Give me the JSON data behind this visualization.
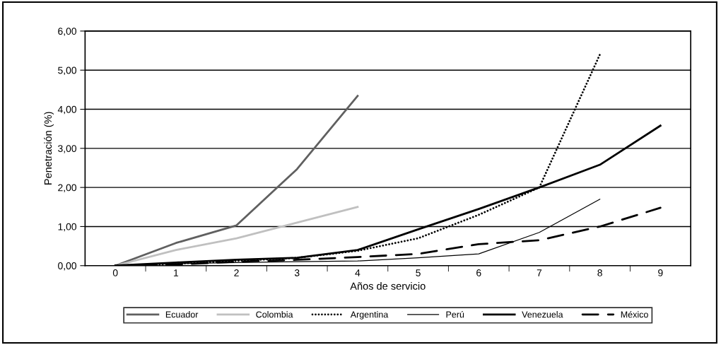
{
  "chart_data": {
    "type": "line",
    "xlabel": "Años de servicio",
    "ylabel": "Penetración (%)",
    "categories": [
      "0",
      "1",
      "2",
      "3",
      "4",
      "5",
      "6",
      "7",
      "8",
      "9"
    ],
    "ylim": [
      0,
      6
    ],
    "yticks": [
      {
        "value": 0,
        "label": "0,00"
      },
      {
        "value": 1,
        "label": "1,00"
      },
      {
        "value": 2,
        "label": "2,00"
      },
      {
        "value": 3,
        "label": "3,00"
      },
      {
        "value": 4,
        "label": "4,00"
      },
      {
        "value": 5,
        "label": "5,00"
      },
      {
        "value": 6,
        "label": "6,00"
      }
    ],
    "grid": "y",
    "legend": "bottom",
    "series": [
      {
        "name": "Ecuador",
        "color": "#606060",
        "line_style": "solid",
        "values": [
          0,
          0.58,
          1.03,
          2.47,
          4.34,
          null,
          null,
          null,
          null,
          null
        ]
      },
      {
        "name": "Colombia",
        "color": "#c0c0c0",
        "line_style": "solid",
        "values": [
          0,
          0.4,
          0.7,
          1.1,
          1.5,
          null,
          null,
          null,
          null,
          null
        ]
      },
      {
        "name": "Argentina",
        "color": "#000000",
        "line_style": "dotted",
        "values": [
          0,
          0.05,
          0.12,
          0.2,
          0.38,
          0.7,
          1.3,
          2.0,
          5.4,
          null
        ]
      },
      {
        "name": "Perú",
        "color": "#000000",
        "line_style": "solid",
        "values": [
          0,
          0.05,
          0.08,
          0.1,
          0.12,
          0.2,
          0.3,
          0.85,
          1.7,
          null
        ]
      },
      {
        "name": "Venezuela",
        "color": "#000000",
        "line_style": "solid",
        "values": [
          0,
          0.08,
          0.15,
          0.2,
          0.4,
          0.93,
          1.45,
          2.0,
          2.58,
          3.58
        ]
      },
      {
        "name": "México",
        "color": "#000000",
        "line_style": "dashed",
        "values": [
          0,
          0.03,
          0.1,
          0.15,
          0.22,
          0.3,
          0.55,
          0.65,
          1.0,
          1.48
        ]
      }
    ]
  }
}
